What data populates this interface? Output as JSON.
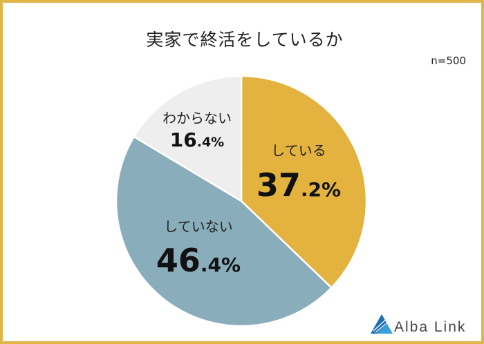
{
  "title": "実家で終活をしているか",
  "sample_size": "n=500",
  "brand": "Alba Link",
  "colors": {
    "border": "#e0b548",
    "doing": "#e3b23f",
    "not_doing": "#8aadbb",
    "unknown": "#eeeeee"
  },
  "chart_data": {
    "type": "pie",
    "categories": [
      "している",
      "していない",
      "わからない"
    ],
    "values": [
      37.2,
      46.4,
      16.4
    ],
    "value_labels": [
      {
        "int": "37",
        "dec": ".2%"
      },
      {
        "int": "46",
        "dec": ".4%"
      },
      {
        "int": "16",
        "dec": ".4%"
      }
    ],
    "start": "12 o'clock, clockwise"
  }
}
